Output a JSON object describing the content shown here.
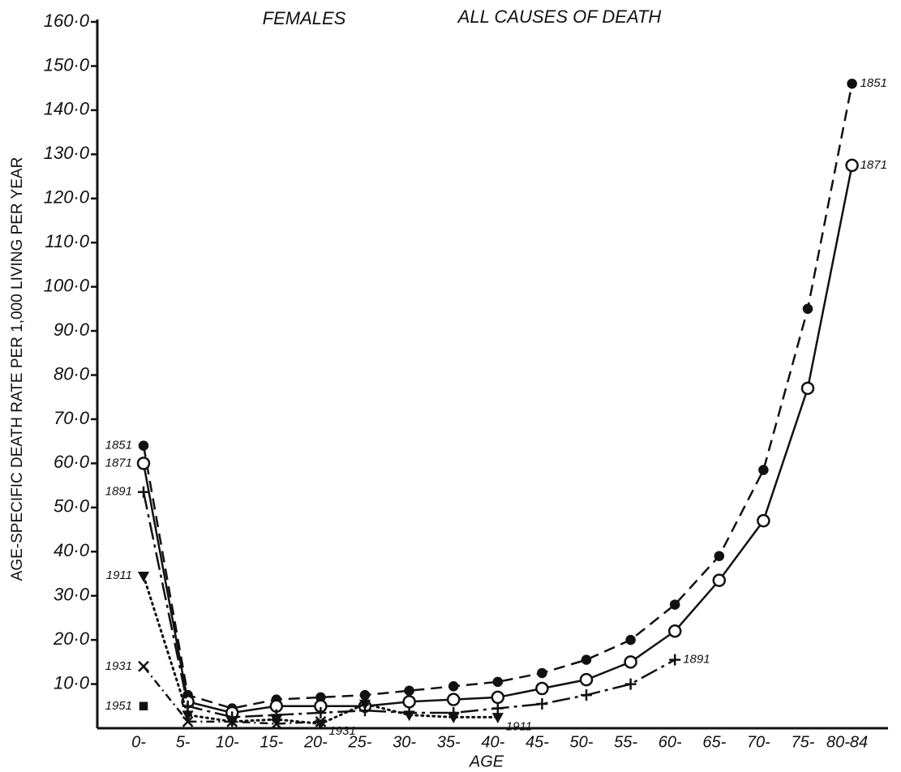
{
  "chart_data": {
    "type": "line",
    "title": "FEMALES",
    "subtitle": "ALL CAUSES OF DEATH",
    "y_label": "AGE-SPECIFIC DEATH RATE PER 1,000 LIVING PER YEAR",
    "x_label": "AGE",
    "categories": [
      "0-",
      "5-",
      "10-",
      "15-",
      "20-",
      "25-",
      "30-",
      "35-",
      "40-",
      "45-",
      "50-",
      "55-",
      "60-",
      "65-",
      "70-",
      "75-",
      "80-84"
    ],
    "ylim": [
      0,
      160
    ],
    "yticks": [
      {
        "value": 10,
        "label": "10·0"
      },
      {
        "value": 20,
        "label": "20·0"
      },
      {
        "value": 30,
        "label": "30·0"
      },
      {
        "value": 40,
        "label": "40·0"
      },
      {
        "value": 50,
        "label": "50·0"
      },
      {
        "value": 60,
        "label": "60·0"
      },
      {
        "value": 70,
        "label": "70·0"
      },
      {
        "value": 80,
        "label": "80·0"
      },
      {
        "value": 90,
        "label": "90·0"
      },
      {
        "value": 100,
        "label": "100·0"
      },
      {
        "value": 110,
        "label": "110·0"
      },
      {
        "value": 120,
        "label": "120·0"
      },
      {
        "value": 130,
        "label": "130·0"
      },
      {
        "value": 140,
        "label": "140·0"
      },
      {
        "value": 150,
        "label": "150·0"
      },
      {
        "value": 160,
        "label": "160·0"
      }
    ],
    "grid": false,
    "series": [
      {
        "name": "1851",
        "color": "#111111",
        "line_style": "dashed",
        "marker": "dot",
        "values": [
          64,
          7.5,
          4.5,
          6.5,
          7,
          7.5,
          8.5,
          9.5,
          10.5,
          12.5,
          15.5,
          20,
          28,
          39,
          58.5,
          95,
          146
        ]
      },
      {
        "name": "1871",
        "color": "#111111",
        "line_style": "solid",
        "marker": "open-circle",
        "values": [
          60,
          6,
          3.5,
          5,
          5,
          5,
          6,
          6.5,
          7,
          9,
          11,
          15,
          22,
          33.5,
          47,
          77,
          127.5
        ]
      },
      {
        "name": "1891",
        "color": "#111111",
        "line_style": "dash-dot-long",
        "marker": "plus",
        "values": [
          53.5,
          5,
          2.5,
          3,
          3.5,
          4,
          3.5,
          3.5,
          4.5,
          5.5,
          7.5,
          10,
          15.5,
          null,
          null,
          null,
          null
        ]
      },
      {
        "name": "1911",
        "color": "#111111",
        "line_style": "dotted",
        "marker": "triangle",
        "values": [
          34.5,
          3,
          1.5,
          2,
          1,
          5.5,
          3,
          2.5,
          2.5,
          null,
          null,
          null,
          null,
          null,
          null,
          null,
          null
        ]
      },
      {
        "name": "1931",
        "color": "#111111",
        "line_style": "dash-dot",
        "marker": "cross",
        "values": [
          14,
          1.5,
          1.5,
          1,
          1.5,
          null,
          null,
          null,
          null,
          null,
          null,
          null,
          null,
          null,
          null,
          null,
          null
        ]
      },
      {
        "name": "1951",
        "color": "#111111",
        "line_style": "none",
        "marker": "square",
        "values": [
          5,
          null,
          null,
          null,
          null,
          null,
          null,
          null,
          null,
          null,
          null,
          null,
          null,
          null,
          null,
          null,
          null
        ]
      }
    ]
  }
}
